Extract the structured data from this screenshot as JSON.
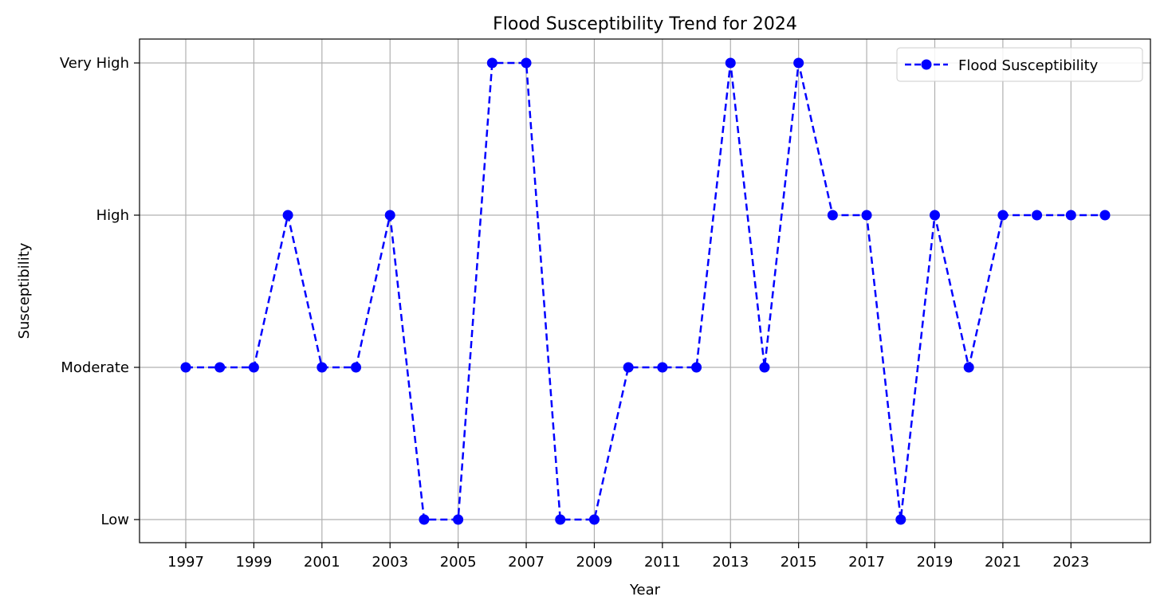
{
  "chart_data": {
    "type": "line",
    "title": "Flood Susceptibility Trend for 2024",
    "xlabel": "Year",
    "ylabel": "Susceptibility",
    "x": [
      1997,
      1998,
      1999,
      2000,
      2001,
      2002,
      2003,
      2004,
      2005,
      2006,
      2007,
      2008,
      2009,
      2010,
      2011,
      2012,
      2013,
      2014,
      2015,
      2016,
      2017,
      2018,
      2019,
      2020,
      2021,
      2022,
      2023,
      2024
    ],
    "x_ticks": [
      1997,
      1999,
      2001,
      2003,
      2005,
      2007,
      2009,
      2011,
      2013,
      2015,
      2017,
      2019,
      2021,
      2023
    ],
    "y_categories": [
      "Low",
      "Moderate",
      "High",
      "Very High"
    ],
    "series": [
      {
        "name": "Flood Susceptibility",
        "values": [
          "Moderate",
          "Moderate",
          "Moderate",
          "High",
          "Moderate",
          "Moderate",
          "High",
          "Low",
          "Low",
          "Very High",
          "Very High",
          "Low",
          "Low",
          "Moderate",
          "Moderate",
          "Moderate",
          "Very High",
          "Moderate",
          "Very High",
          "High",
          "High",
          "Low",
          "High",
          "Moderate",
          "High",
          "High",
          "High",
          "High"
        ],
        "color": "#0000ff",
        "line_style": "dashed",
        "marker": "circle"
      }
    ],
    "grid": true,
    "legend_position": "top-right"
  }
}
